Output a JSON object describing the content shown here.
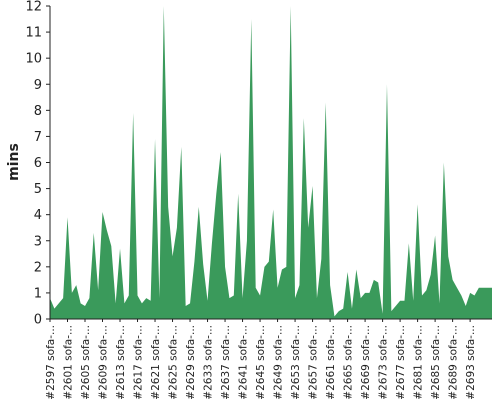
{
  "chart_data": {
    "type": "area",
    "title": "",
    "xlabel": "",
    "ylabel": "mins",
    "ylim": [
      0,
      12
    ],
    "yticks": [
      0,
      1,
      2,
      3,
      4,
      5,
      6,
      7,
      8,
      9,
      10,
      11,
      12
    ],
    "grid": false,
    "legend": "none",
    "fill_color": "#3a9a5b",
    "x_labels": [
      "#2597 sofa-...",
      "#2601 sofa-...",
      "#2605 sofa-...",
      "#2609 sofa-...",
      "#2613 sofa-...",
      "#2617 sofa-...",
      "#2621 sofa-...",
      "#2625 sofa-...",
      "#2629 sofa-...",
      "#2633 sofa-...",
      "#2637 sofa-...",
      "#2641 sofa-...",
      "#2645 sofa-...",
      "#2649 sofa-...",
      "#2653 sofa-...",
      "#2657 sofa-...",
      "#2661 sofa-...",
      "#2665 sofa-...",
      "#2669 sofa-...",
      "#2673 sofa-...",
      "#2677 sofa-...",
      "#2681 sofa-...",
      "#2685 sofa-...",
      "#2689 sofa-...",
      "#2693 sofa-..."
    ],
    "x_label_start": 2597,
    "x_label_step": 4,
    "x": [
      2597,
      2598,
      2599,
      2600,
      2601,
      2602,
      2603,
      2604,
      2605,
      2606,
      2607,
      2608,
      2609,
      2610,
      2611,
      2612,
      2613,
      2614,
      2615,
      2616,
      2617,
      2618,
      2619,
      2620,
      2621,
      2622,
      2623,
      2624,
      2625,
      2626,
      2627,
      2628,
      2629,
      2630,
      2631,
      2632,
      2633,
      2634,
      2635,
      2636,
      2637,
      2638,
      2639,
      2640,
      2641,
      2642,
      2643,
      2644,
      2645,
      2646,
      2647,
      2648,
      2649,
      2650,
      2651,
      2652,
      2653,
      2654,
      2655,
      2656,
      2657,
      2658,
      2659,
      2660,
      2661,
      2662,
      2663,
      2664,
      2665,
      2666,
      2667,
      2668,
      2669,
      2670,
      2671,
      2672,
      2673,
      2674,
      2675,
      2676,
      2677,
      2678,
      2679,
      2680,
      2681,
      2682,
      2683,
      2684,
      2685,
      2686,
      2687,
      2688,
      2689,
      2690,
      2691,
      2692,
      2693,
      2694,
      2695,
      2696,
      2697,
      2698
    ],
    "values": [
      0.8,
      0.4,
      0.6,
      0.8,
      3.9,
      1.0,
      1.3,
      0.6,
      0.5,
      0.8,
      3.3,
      1.1,
      4.1,
      3.4,
      2.8,
      0.6,
      2.7,
      0.6,
      0.9,
      7.9,
      0.9,
      0.6,
      0.8,
      0.7,
      6.9,
      0.8,
      12.0,
      4.3,
      2.4,
      3.5,
      6.6,
      0.5,
      0.6,
      2.2,
      4.3,
      2.1,
      0.7,
      2.9,
      4.8,
      6.4,
      2.0,
      0.8,
      0.9,
      4.8,
      0.8,
      3.0,
      11.5,
      1.2,
      0.9,
      2.0,
      2.2,
      4.2,
      1.2,
      1.9,
      2.0,
      12.0,
      0.8,
      1.3,
      7.7,
      3.5,
      5.1,
      0.8,
      2.3,
      8.3,
      1.3,
      0.1,
      0.3,
      0.4,
      1.8,
      0.4,
      1.9,
      0.8,
      1.0,
      1.0,
      1.5,
      1.4,
      0.2,
      9.0,
      0.3,
      0.5,
      0.7,
      0.7,
      2.9,
      0.7,
      4.4,
      0.9,
      1.1,
      1.7,
      3.2,
      0.6,
      6.0,
      2.4,
      1.5,
      1.2,
      0.9,
      0.5,
      1.0,
      0.9,
      1.2,
      1.2,
      1.2,
      1.2
    ]
  }
}
